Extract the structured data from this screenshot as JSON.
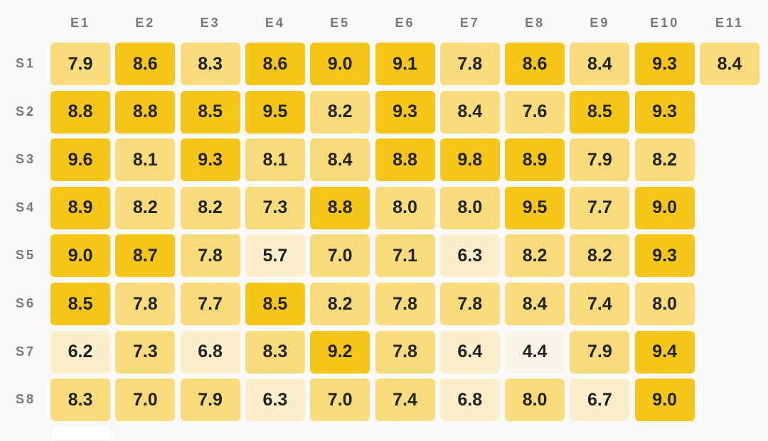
{
  "chart_data": {
    "type": "heatmap",
    "title": "",
    "columns": [
      "E1",
      "E2",
      "E3",
      "E4",
      "E5",
      "E6",
      "E7",
      "E8",
      "E9",
      "E10",
      "E11"
    ],
    "rows": [
      "S1",
      "S2",
      "S3",
      "S4",
      "S5",
      "S6",
      "S7",
      "S8"
    ],
    "values": [
      [
        7.9,
        8.6,
        8.3,
        8.6,
        9.0,
        9.1,
        7.8,
        8.6,
        8.4,
        9.3,
        8.4
      ],
      [
        8.8,
        8.8,
        8.5,
        9.5,
        8.2,
        9.3,
        8.4,
        7.6,
        8.5,
        9.3,
        null
      ],
      [
        9.6,
        8.1,
        9.3,
        8.1,
        8.4,
        8.8,
        9.8,
        8.9,
        7.9,
        8.2,
        null
      ],
      [
        8.9,
        8.2,
        8.2,
        7.3,
        8.8,
        8.0,
        8.0,
        9.5,
        7.7,
        9.0,
        null
      ],
      [
        9.0,
        8.7,
        7.8,
        5.7,
        7.0,
        7.1,
        6.3,
        8.2,
        8.2,
        9.3,
        null
      ],
      [
        8.5,
        7.8,
        7.7,
        8.5,
        8.2,
        7.8,
        7.8,
        8.4,
        7.4,
        8.0,
        null
      ],
      [
        6.2,
        7.3,
        6.8,
        8.3,
        9.2,
        7.8,
        6.4,
        4.4,
        7.9,
        9.4,
        null
      ],
      [
        8.3,
        7.0,
        7.9,
        6.3,
        7.0,
        7.4,
        6.8,
        8.0,
        6.7,
        9.0,
        null
      ]
    ],
    "color_scale": [
      {
        "min": 8.5,
        "color": "#f5c518"
      },
      {
        "min": 7.0,
        "color": "#f8dc7c"
      },
      {
        "min": 5.0,
        "color": "#faeecb"
      },
      {
        "min": 0,
        "color": "#f9f4e6"
      }
    ]
  }
}
